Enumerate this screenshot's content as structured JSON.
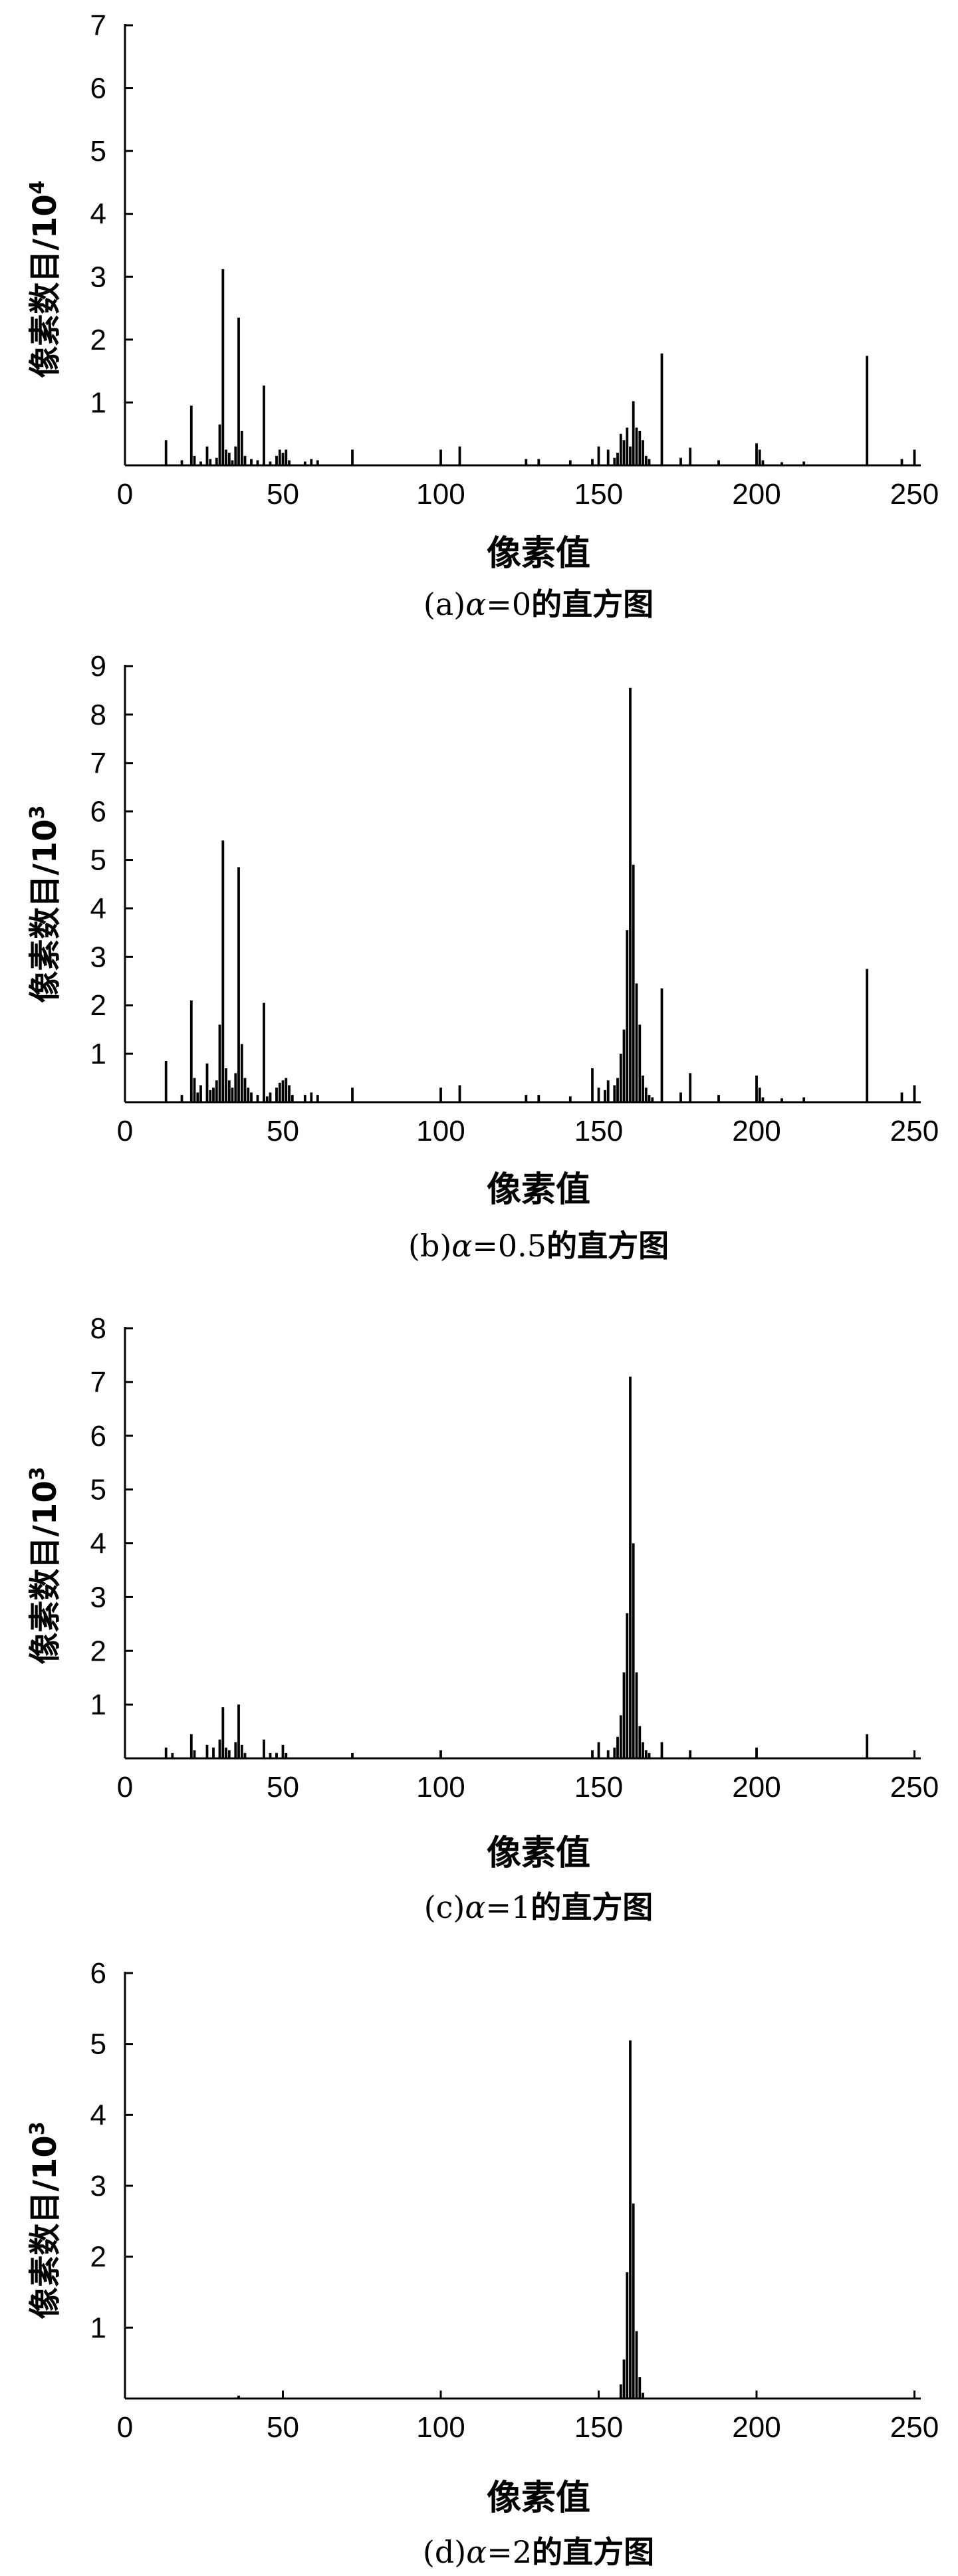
{
  "figure": {
    "panels": [
      {
        "id": "a",
        "caption": {
          "prefix": "(a)",
          "symbol": "α",
          "eq": "=0",
          "suffix": "的直方图"
        },
        "ylabel": {
          "text": "像素数目/10",
          "exponent": "4"
        },
        "xlabel": "像素值"
      },
      {
        "id": "b",
        "caption": {
          "prefix": "(b)",
          "symbol": "α",
          "eq": "=0.5",
          "suffix": "的直方图"
        },
        "ylabel": {
          "text": "像素数目/10",
          "exponent": "3"
        },
        "xlabel": "像素值"
      },
      {
        "id": "c",
        "caption": {
          "prefix": "(c)",
          "symbol": "α",
          "eq": "=1",
          "suffix": "的直方图"
        },
        "ylabel": {
          "text": "像素数目/10",
          "exponent": "3"
        },
        "xlabel": "像素值"
      },
      {
        "id": "d",
        "caption": {
          "prefix": "(d)",
          "symbol": "α",
          "eq": "=2",
          "suffix": "的直方图"
        },
        "ylabel": {
          "text": "像素数目/10",
          "exponent": "3"
        },
        "xlabel": "像素值"
      }
    ]
  },
  "chart_data": [
    {
      "type": "bar",
      "xlabel": "像素值",
      "ylabel": "像素数目/10^4",
      "xlim": [
        0,
        252
      ],
      "ylim": [
        0,
        7
      ],
      "xticks": [
        0,
        50,
        100,
        150,
        200,
        250
      ],
      "yticks": [
        1,
        2,
        3,
        4,
        5,
        6,
        7
      ],
      "bar_color": "#000000",
      "x": [
        13,
        18,
        21,
        22,
        24,
        26,
        27,
        29,
        30,
        31,
        32,
        33,
        34,
        35,
        36,
        37,
        38,
        40,
        42,
        44,
        46,
        48,
        49,
        50,
        51,
        52,
        57,
        59,
        61,
        72,
        100,
        106,
        127,
        131,
        141,
        148,
        150,
        153,
        155,
        156,
        157,
        158,
        159,
        160,
        161,
        162,
        163,
        164,
        165,
        166,
        170,
        176,
        179,
        188,
        200,
        201,
        202,
        208,
        215,
        235,
        246,
        250
      ],
      "values": [
        0.4,
        0.08,
        0.95,
        0.15,
        0.06,
        0.3,
        0.1,
        0.12,
        0.65,
        3.12,
        0.25,
        0.2,
        0.08,
        0.3,
        2.35,
        0.55,
        0.15,
        0.1,
        0.08,
        1.27,
        0.06,
        0.15,
        0.25,
        0.2,
        0.25,
        0.08,
        0.06,
        0.1,
        0.08,
        0.25,
        0.25,
        0.3,
        0.1,
        0.1,
        0.08,
        0.1,
        0.3,
        0.25,
        0.12,
        0.2,
        0.5,
        0.4,
        0.6,
        0.3,
        1.02,
        0.6,
        0.55,
        0.4,
        0.15,
        0.1,
        1.78,
        0.12,
        0.28,
        0.08,
        0.35,
        0.25,
        0.08,
        0.05,
        0.06,
        1.74,
        0.1,
        0.25
      ]
    },
    {
      "type": "bar",
      "xlabel": "像素值",
      "ylabel": "像素数目/10^3",
      "xlim": [
        0,
        252
      ],
      "ylim": [
        0,
        9
      ],
      "xticks": [
        0,
        50,
        100,
        150,
        200,
        250
      ],
      "yticks": [
        1,
        2,
        3,
        4,
        5,
        6,
        7,
        8,
        9
      ],
      "bar_color": "#000000",
      "x": [
        13,
        18,
        21,
        22,
        23,
        24,
        26,
        27,
        28,
        29,
        30,
        31,
        32,
        33,
        34,
        35,
        36,
        37,
        38,
        39,
        40,
        42,
        44,
        45,
        46,
        48,
        49,
        50,
        51,
        52,
        53,
        57,
        59,
        61,
        72,
        100,
        106,
        127,
        131,
        141,
        148,
        150,
        152,
        153,
        155,
        156,
        157,
        158,
        159,
        160,
        161,
        162,
        163,
        164,
        165,
        166,
        167,
        170,
        176,
        179,
        188,
        200,
        201,
        202,
        208,
        215,
        235,
        246,
        250
      ],
      "values": [
        0.85,
        0.15,
        2.1,
        0.5,
        0.2,
        0.35,
        0.8,
        0.25,
        0.3,
        0.45,
        1.6,
        5.4,
        0.7,
        0.45,
        0.3,
        0.6,
        4.85,
        1.2,
        0.5,
        0.3,
        0.2,
        0.15,
        2.05,
        0.12,
        0.2,
        0.3,
        0.4,
        0.45,
        0.5,
        0.35,
        0.15,
        0.15,
        0.2,
        0.15,
        0.3,
        0.3,
        0.35,
        0.15,
        0.15,
        0.12,
        0.7,
        0.3,
        0.25,
        0.45,
        0.35,
        0.5,
        1.0,
        1.5,
        3.55,
        8.55,
        4.9,
        2.45,
        1.6,
        0.55,
        0.3,
        0.15,
        0.1,
        2.35,
        0.2,
        0.6,
        0.15,
        0.55,
        0.3,
        0.1,
        0.08,
        0.1,
        2.75,
        0.2,
        0.35
      ]
    },
    {
      "type": "bar",
      "xlabel": "像素值",
      "ylabel": "像素数目/10^3",
      "xlim": [
        0,
        252
      ],
      "ylim": [
        0,
        8
      ],
      "xticks": [
        0,
        50,
        100,
        150,
        200,
        250
      ],
      "yticks": [
        1,
        2,
        3,
        4,
        5,
        6,
        7,
        8
      ],
      "bar_color": "#000000",
      "x": [
        13,
        15,
        21,
        22,
        26,
        28,
        30,
        31,
        32,
        33,
        35,
        36,
        37,
        38,
        44,
        46,
        48,
        50,
        51,
        72,
        100,
        148,
        150,
        153,
        155,
        156,
        157,
        158,
        159,
        160,
        161,
        162,
        163,
        164,
        165,
        166,
        170,
        179,
        200,
        235
      ],
      "values": [
        0.2,
        0.1,
        0.45,
        0.15,
        0.25,
        0.2,
        0.35,
        0.95,
        0.2,
        0.15,
        0.3,
        1.0,
        0.25,
        0.1,
        0.35,
        0.1,
        0.1,
        0.25,
        0.1,
        0.1,
        0.15,
        0.15,
        0.3,
        0.15,
        0.2,
        0.4,
        0.8,
        1.6,
        2.7,
        7.1,
        4.0,
        1.6,
        0.6,
        0.3,
        0.15,
        0.1,
        0.3,
        0.15,
        0.2,
        0.45
      ]
    },
    {
      "type": "bar",
      "xlabel": "像素值",
      "ylabel": "像素数目/10^3",
      "xlim": [
        0,
        252
      ],
      "ylim": [
        0,
        6
      ],
      "xticks": [
        0,
        50,
        100,
        150,
        200,
        250
      ],
      "yticks": [
        1,
        2,
        3,
        4,
        5,
        6
      ],
      "bar_color": "#000000",
      "x": [
        36,
        157,
        158,
        159,
        160,
        161,
        162,
        163,
        164
      ],
      "values": [
        0.04,
        0.2,
        0.55,
        1.78,
        5.05,
        2.75,
        0.95,
        0.3,
        0.08
      ]
    }
  ]
}
